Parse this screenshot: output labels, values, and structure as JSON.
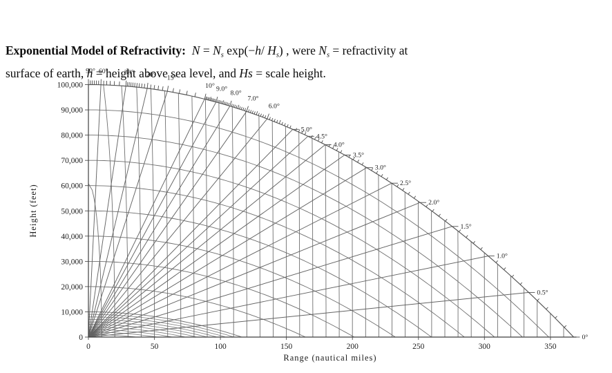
{
  "header": {
    "tokens": [
      {
        "t": "Exponential Model of Refractivity:  ",
        "s": "b"
      },
      {
        "t": "N",
        "s": "i"
      },
      {
        "t": " = ",
        "s": "n"
      },
      {
        "t": "N",
        "s": "i"
      },
      {
        "t": "s",
        "s": "sub"
      },
      {
        "t": " exp(−",
        "s": "n"
      },
      {
        "t": "h",
        "s": "i"
      },
      {
        "t": "/ ",
        "s": "n"
      },
      {
        "t": "H",
        "s": "i"
      },
      {
        "t": "s",
        "s": "sub"
      },
      {
        "t": ") , were ",
        "s": "n"
      },
      {
        "t": "N",
        "s": "i"
      },
      {
        "t": "s",
        "s": "sub"
      },
      {
        "t": " = refractivity at",
        "s": "n"
      },
      {
        "br": true
      },
      {
        "t": "surface of earth, ",
        "s": "n"
      },
      {
        "t": "h",
        "s": "i"
      },
      {
        "t": " = height above sea level, and ",
        "s": "n"
      },
      {
        "t": "Hs",
        "s": "i"
      },
      {
        "t": " = scale height.",
        "s": "n"
      }
    ]
  },
  "chart_data": {
    "type": "line",
    "kind": "radar-range-height-angle-coverage-chart",
    "title": "",
    "xlabel": "Range (nautical miles)",
    "ylabel": "Height (feet)",
    "xlim_nmi": [
      0,
      350
    ],
    "ylim_ft": [
      0,
      100000
    ],
    "x_ticks_nmi": [
      0,
      50,
      100,
      150,
      200,
      250,
      300,
      350
    ],
    "x_tick_labels": [
      "0",
      "50",
      "100",
      "150",
      "200",
      "250",
      "300",
      "350"
    ],
    "y_ticks_ft": [
      0,
      10000,
      20000,
      30000,
      40000,
      50000,
      60000,
      70000,
      80000,
      90000,
      100000
    ],
    "y_tick_labels": [
      "0",
      "10,000",
      "20,000",
      "30,000",
      "40,000",
      "50,000",
      "60,000",
      "70,000",
      "80,000",
      "90,000",
      "100,000"
    ],
    "elevation_rays_deg": [
      0,
      0.5,
      1,
      1.5,
      2,
      2.5,
      3,
      3.5,
      4,
      4.5,
      5,
      6,
      7,
      8,
      9,
      10,
      15,
      20,
      30,
      60,
      90
    ],
    "angle_labels": [
      {
        "deg": 90,
        "label": "90°"
      },
      {
        "deg": 60,
        "label": "60°"
      },
      {
        "deg": 30,
        "label": "30°"
      },
      {
        "deg": 20,
        "label": "20°"
      },
      {
        "deg": 15,
        "label": "15°"
      },
      {
        "deg": 10,
        "label": "10°"
      },
      {
        "deg": 9,
        "label": "9.0°"
      },
      {
        "deg": 8,
        "label": "8.0°"
      },
      {
        "deg": 7,
        "label": "7.0°"
      },
      {
        "deg": 6,
        "label": "6.0°"
      },
      {
        "deg": 5,
        "label": "5.0°"
      },
      {
        "deg": 4.5,
        "label": "4.5°"
      },
      {
        "deg": 4,
        "label": "4.0°"
      },
      {
        "deg": 3.5,
        "label": "3.5°"
      },
      {
        "deg": 3,
        "label": "3.0°"
      },
      {
        "deg": 2.5,
        "label": "2.5°"
      },
      {
        "deg": 2,
        "label": "2.0°"
      },
      {
        "deg": 1.5,
        "label": "1.5°"
      },
      {
        "deg": 1,
        "label": "1.0°"
      },
      {
        "deg": 0.5,
        "label": "0.5°"
      },
      {
        "deg": 0,
        "label": "0°"
      }
    ],
    "minor_angle_ticks": [
      {
        "from": 0,
        "to": 10,
        "step": 0.1
      },
      {
        "from": 10,
        "to": 30,
        "step": 1
      },
      {
        "from": 30,
        "to": 90,
        "step": 5
      }
    ],
    "range_arcs_nmi": {
      "start": 10,
      "end": 360,
      "step": 10
    },
    "height_contours_ft": {
      "major_step": 10000,
      "minor_step_below_10000": 1000
    },
    "earth_drop_ft_per_nmi2": 0.74,
    "ft_per_nmi": 6076,
    "grid": true,
    "legend": "none"
  }
}
